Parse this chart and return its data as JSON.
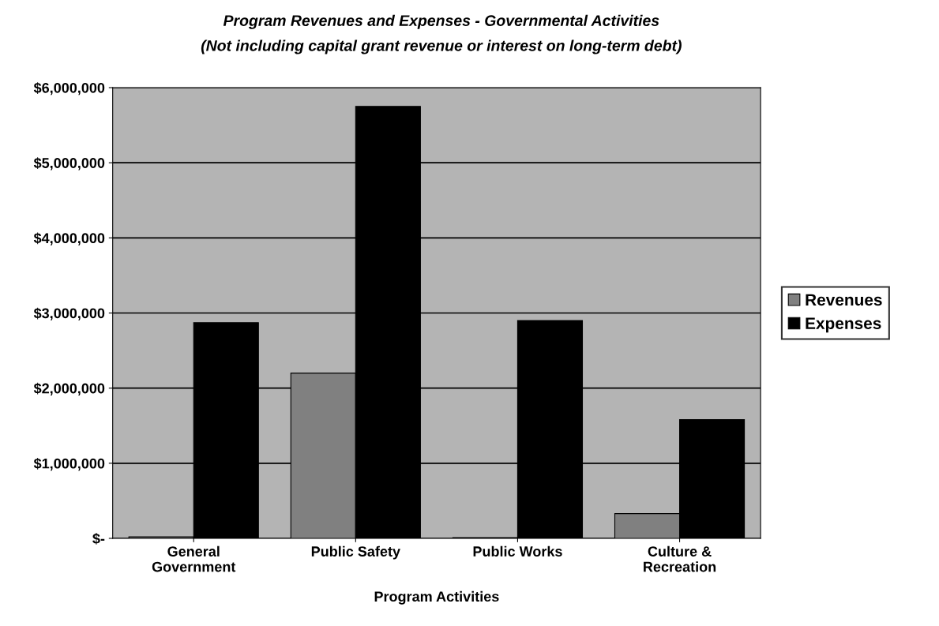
{
  "chart_data": {
    "type": "bar",
    "title": "Program Revenues and Expenses - Governmental Activities",
    "subtitle": "(Not including capital grant revenue or interest on long-term debt)",
    "xlabel": "Program Activities",
    "categories": [
      "General\nGovernment",
      "Public Safety",
      "Public Works",
      "Culture &\nRecreation"
    ],
    "series": [
      {
        "name": "Revenues",
        "color": "#808080",
        "values": [
          20000,
          2200000,
          10000,
          330000
        ]
      },
      {
        "name": "Expenses",
        "color": "#000000",
        "values": [
          2870000,
          5750000,
          2900000,
          1580000
        ]
      }
    ],
    "ylim": [
      0,
      6000000
    ],
    "yticks": [
      {
        "value": 0,
        "label": "$-"
      },
      {
        "value": 1000000,
        "label": "$1,000,000"
      },
      {
        "value": 2000000,
        "label": "$2,000,000"
      },
      {
        "value": 3000000,
        "label": "$3,000,000"
      },
      {
        "value": 4000000,
        "label": "$4,000,000"
      },
      {
        "value": 5000000,
        "label": "$5,000,000"
      },
      {
        "value": 6000000,
        "label": "$6,000,000"
      }
    ],
    "grid": "y",
    "legend": "right"
  }
}
